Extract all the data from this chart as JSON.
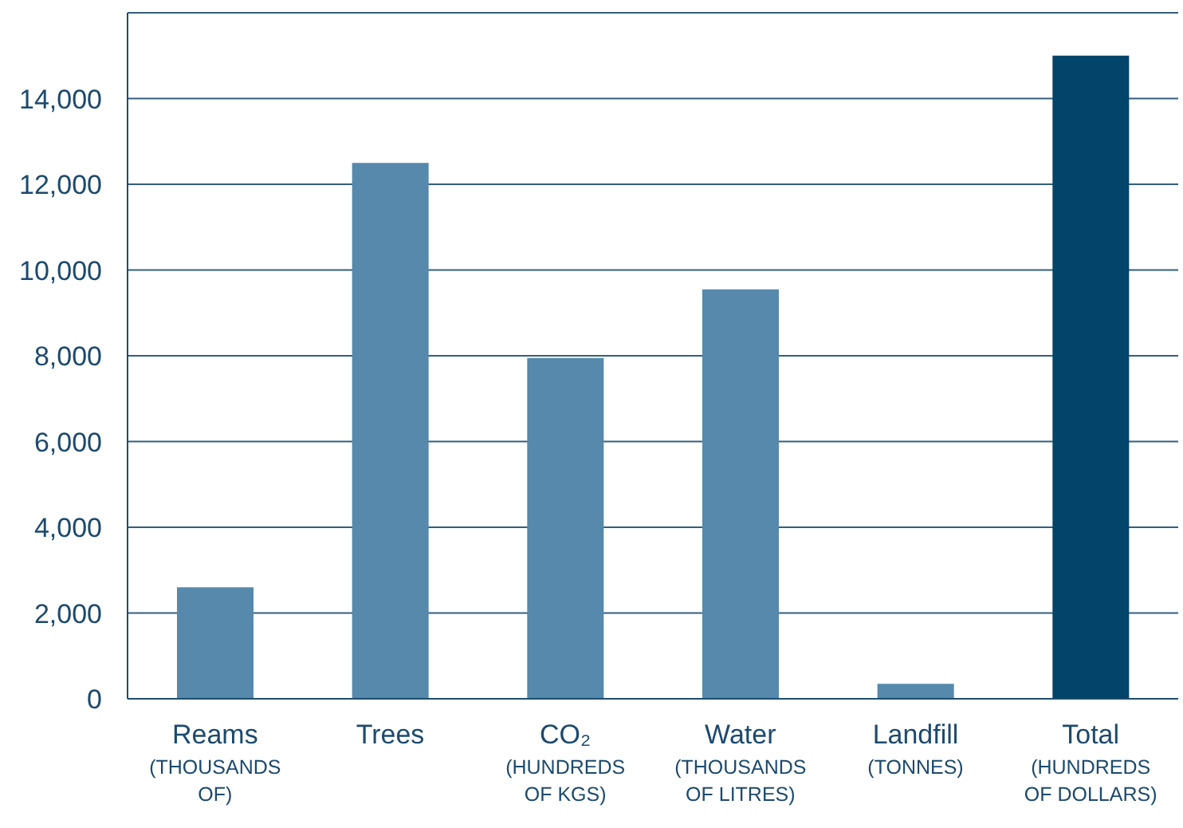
{
  "chart_data": {
    "type": "bar",
    "categories": [
      "Reams\n(THOUSANDS\nOF)",
      "Trees",
      "CO₂\n(HUNDREDS\nOF KGS)",
      "Water\n(THOUSANDS\nOF LITRES)",
      "Landfill\n(TONNES)",
      "Total\n(HUNDREDS\nOF DOLLARS)"
    ],
    "values": [
      2600,
      12500,
      7950,
      9550,
      350,
      15000
    ],
    "colors": [
      "#5689ab",
      "#5689ab",
      "#5689ab",
      "#5689ab",
      "#5689ab",
      "#02446a"
    ],
    "ylim": [
      0,
      16000
    ],
    "yticks": [
      0,
      {
        "value": 2000,
        "label": "2,000"
      },
      {
        "value": 4000,
        "label": "4,000"
      },
      {
        "value": 6000,
        "label": "6,000"
      },
      {
        "value": 8000,
        "label": "8,000"
      },
      {
        "value": 10000,
        "label": "10,000"
      },
      {
        "value": 12000,
        "label": "12,000"
      },
      {
        "value": 14000,
        "label": "14,000"
      }
    ],
    "grid": "y"
  }
}
